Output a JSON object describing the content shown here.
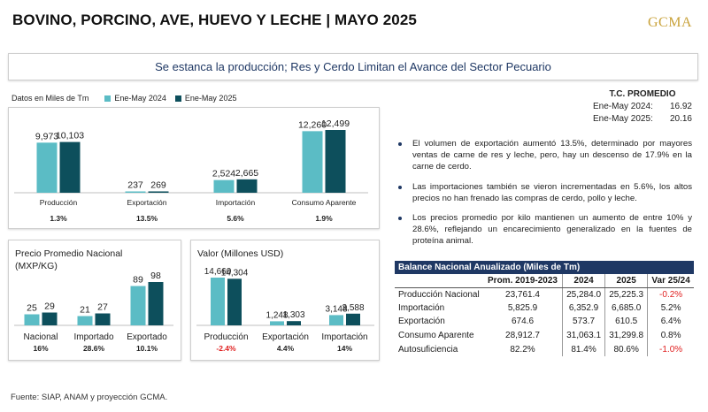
{
  "header": {
    "title": "BOVINO, PORCINO, AVE, HUEVO Y LECHE | MAYO 2025",
    "logo": "GCMA",
    "subtitle": "Se estanca la producción; Res y Cerdo Limitan el Avance del Sector Pecuario"
  },
  "legend": {
    "unit": "Datos en Miles de Tm",
    "items": [
      {
        "label": "Ene-May 2024",
        "color": "#5bbcc5"
      },
      {
        "label": "Ene-May 2025",
        "color": "#0d4f5c"
      }
    ]
  },
  "colors": {
    "s2024": "#5bbcc5",
    "s2025": "#0d4f5c",
    "negative": "#e02020",
    "navy": "#1f3864"
  },
  "chart_data": [
    {
      "type": "bar",
      "categories": [
        "Producción",
        "Exportación",
        "Importación",
        "Consumo Aparente"
      ],
      "series": [
        {
          "name": "Ene-May 2024",
          "values": [
            9973,
            237,
            2524,
            12260
          ],
          "labels": [
            "9,973",
            "237",
            "2,524",
            "12,260"
          ]
        },
        {
          "name": "Ene-May 2025",
          "values": [
            10103,
            269,
            2665,
            12499
          ],
          "labels": [
            "10,103",
            "269",
            "2,665",
            "12,499"
          ]
        }
      ],
      "changes": [
        {
          "text": "1.3%",
          "negative": false
        },
        {
          "text": "13.5%",
          "negative": false
        },
        {
          "text": "5.6%",
          "negative": false
        },
        {
          "text": "1.9%",
          "negative": false
        }
      ],
      "title": "",
      "ylim": [
        0,
        12499
      ]
    },
    {
      "type": "bar",
      "title": "Precio Promedio Nacional (MXP/KG)",
      "categories": [
        "Nacional",
        "Importado",
        "Exportado"
      ],
      "series": [
        {
          "name": "Ene-May 2024",
          "values": [
            25,
            21,
            89
          ],
          "labels": [
            "25",
            "21",
            "89"
          ]
        },
        {
          "name": "Ene-May 2025",
          "values": [
            29,
            27,
            98
          ],
          "labels": [
            "29",
            "27",
            "98"
          ]
        }
      ],
      "changes": [
        {
          "text": "16%",
          "negative": false
        },
        {
          "text": "28.6%",
          "negative": false
        },
        {
          "text": "10.1%",
          "negative": false
        }
      ],
      "ylim": [
        0,
        98
      ]
    },
    {
      "type": "bar",
      "title": "Valor (Millones USD)",
      "categories": [
        "Producción",
        "Exportación",
        "Importación"
      ],
      "series": [
        {
          "name": "Ene-May 2024",
          "values": [
            14660,
            1248,
            3148
          ],
          "labels": [
            "14,660",
            "1,248",
            "3,148"
          ]
        },
        {
          "name": "Ene-May 2025",
          "values": [
            14304,
            1303,
            3588
          ],
          "labels": [
            "14,304",
            "1,303",
            "3,588"
          ]
        }
      ],
      "changes": [
        {
          "text": "-2.4%",
          "negative": true
        },
        {
          "text": "4.4%",
          "negative": false
        },
        {
          "text": "14%",
          "negative": false
        }
      ],
      "ylim": [
        0,
        14660
      ]
    }
  ],
  "tc": {
    "title": "T.C. PROMEDIO",
    "rows": [
      {
        "label": "Ene-May 2024:",
        "value": "16.92"
      },
      {
        "label": "Ene-May 2025:",
        "value": "20.16"
      }
    ]
  },
  "bullets": [
    "El volumen de exportación aumentó 13.5%, determinado por mayores ventas de carne de  res y leche, pero, hay un descenso de 17.9%  en la carne de cerdo.",
    "Las importaciones también se  vieron incrementadas en 5.6%, los altos precios no han frenado las compras de cerdo, pollo y leche.",
    "Los precios promedio por kilo mantienen un aumento de entre 10% y 28.6%, reflejando un encarecimiento generalizado en la fuentes de proteína animal."
  ],
  "table": {
    "caption": "Balance Nacional Anualizado (Miles de Tm)",
    "headers": [
      "",
      "Prom. 2019-2023",
      "2024",
      "2025",
      "Var 25/24"
    ],
    "rows": [
      {
        "label": "Producción Nacional",
        "prom": "23,761.4",
        "y2024": "25,284.0",
        "y2025": "25,225.3",
        "var": "-0.2%",
        "neg": true
      },
      {
        "label": "Importación",
        "prom": "5,825.9",
        "y2024": "6,352.9",
        "y2025": "6,685.0",
        "var": "5.2%",
        "neg": false
      },
      {
        "label": "Exportación",
        "prom": "674.6",
        "y2024": "573.7",
        "y2025": "610.5",
        "var": "6.4%",
        "neg": false
      },
      {
        "label": "Consumo Aparente",
        "prom": "28,912.7",
        "y2024": "31,063.1",
        "y2025": "31,299.8",
        "var": "0.8%",
        "neg": false
      },
      {
        "label": "Autosuficiencia",
        "prom": "82.2%",
        "y2024": "81.4%",
        "y2025": "80.6%",
        "var": "-1.0%",
        "neg": true
      }
    ]
  },
  "footer": "Fuente: SIAP, ANAM y proyección GCMA."
}
